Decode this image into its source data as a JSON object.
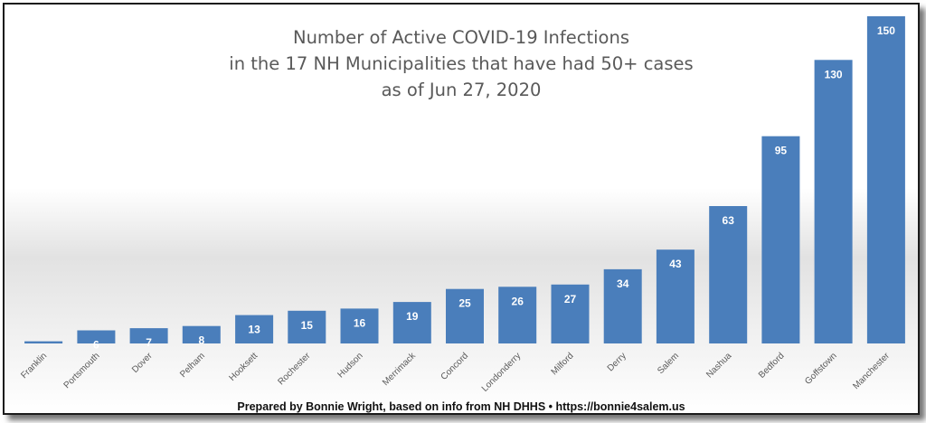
{
  "chart_data": {
    "type": "bar",
    "title_lines": [
      "Number of Active COVID-19 Infections",
      "in the 17 NH Municipalities that have had 50+ cases",
      "as of Jun 27, 2020"
    ],
    "categories": [
      "Franklin",
      "Portsmouth",
      "Dover",
      "Pelham",
      "Hooksett",
      "Rochester",
      "Hudson",
      "Merrimack",
      "Concord",
      "Londonderry",
      "Milford",
      "Derry",
      "Salem",
      "Nashua",
      "Bedford",
      "Goffstown",
      "Manchester"
    ],
    "values": [
      1,
      6,
      7,
      8,
      13,
      15,
      16,
      19,
      25,
      26,
      27,
      34,
      43,
      63,
      95,
      130,
      150
    ],
    "bar_color": "#4a7ebb",
    "label_color": "#ffffff",
    "ylim": [
      0,
      150
    ],
    "grid": false,
    "legend": "none"
  },
  "footer": "Prepared by Bonnie Wright, based on info from NH DHHS • https://bonnie4salem.us"
}
